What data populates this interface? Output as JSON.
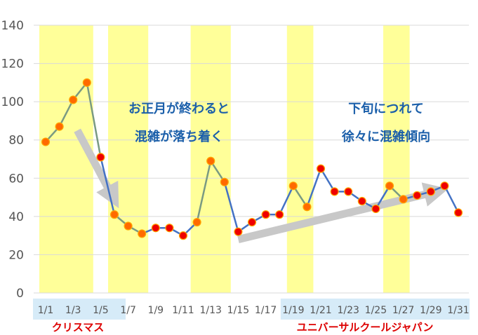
{
  "chart_data": {
    "type": "line",
    "x": [
      "1/1",
      "1/2",
      "1/3",
      "1/4",
      "1/5",
      "1/6",
      "1/7",
      "1/8",
      "1/9",
      "1/10",
      "1/11",
      "1/12",
      "1/13",
      "1/14",
      "1/15",
      "1/16",
      "1/17",
      "1/18",
      "1/19",
      "1/20",
      "1/21",
      "1/22",
      "1/23",
      "1/24",
      "1/25",
      "1/26",
      "1/27",
      "1/28",
      "1/29",
      "1/30",
      "1/31"
    ],
    "values": [
      79,
      87,
      101,
      110,
      71,
      41,
      35,
      31,
      34,
      34,
      30,
      37,
      69,
      58,
      32,
      37,
      41,
      41,
      56,
      45,
      65,
      53,
      53,
      48,
      44,
      56,
      49,
      51,
      53,
      56,
      42
    ],
    "x_tick_labels": [
      "1/1",
      "1/3",
      "1/5",
      "1/7",
      "1/9",
      "1/11",
      "1/13",
      "1/15",
      "1/17",
      "1/19",
      "1/21",
      "1/23",
      "1/25",
      "1/27",
      "1/29",
      "1/31"
    ],
    "y_tick_labels": [
      "0",
      "20",
      "40",
      "60",
      "80",
      "100",
      "120",
      "140"
    ],
    "ylim": [
      0,
      140
    ],
    "grid": "horizontal",
    "highlight_ranges": [
      [
        "1/1",
        "1/4"
      ],
      [
        "1/6",
        "1/8"
      ],
      [
        "1/12",
        "1/14"
      ],
      [
        "1/19",
        "1/20"
      ],
      [
        "1/26",
        "1/27"
      ]
    ],
    "annotations": [
      {
        "id": "new-year",
        "lines": [
          "お正月が終わると",
          "混雑が落ち着く"
        ]
      },
      {
        "id": "late-month",
        "lines": [
          "下旬につれて",
          "徐々に混雑傾向"
        ]
      }
    ],
    "period_labels": [
      {
        "id": "christmas",
        "text": "クリスマス",
        "from": "1/1",
        "to": "1/6"
      },
      {
        "id": "usj",
        "text": "ユニバーサルクールジャパン",
        "from": "1/19",
        "to": "1/31"
      }
    ],
    "colors": {
      "line_green": "#7a9a82",
      "line_blue": "#4472c4",
      "marker_orange": "#ff6a00",
      "marker_red": "#ee0000",
      "marker_edge": "#ffaa00",
      "highlight": "#ffff99",
      "annotation_text": "#1b5faa",
      "period_text": "#dd0000",
      "period_band": "#d6ebf8",
      "arrow": "#c8c8c8"
    }
  }
}
